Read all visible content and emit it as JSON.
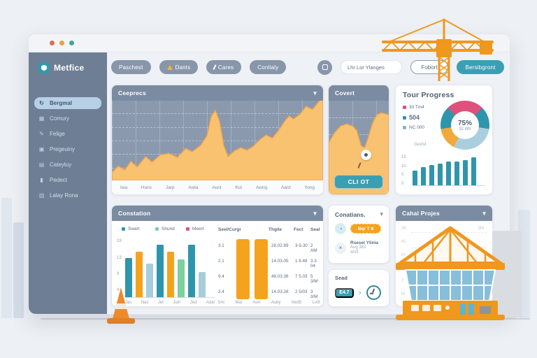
{
  "window": {
    "title_dots": [
      "#dd6b5a",
      "#e3a43e",
      "#3ea79b"
    ]
  },
  "brand": {
    "name": "Metfice"
  },
  "colors": {
    "accent_teal": "#2f9ab0",
    "accent_orange": "#f5a21f",
    "slate_header": "#7b8ba1",
    "pink": "#e0507c",
    "green": "#7fcf9f",
    "light_blue": "#a7cddd"
  },
  "sidebar": {
    "items": [
      {
        "label": "Bergmal",
        "icon": "refresh",
        "active": true
      },
      {
        "label": "Comury",
        "icon": "grid",
        "active": false
      },
      {
        "label": "Felige",
        "icon": "pencil",
        "active": false
      },
      {
        "label": "Pregeuiny",
        "icon": "calculator",
        "active": false
      },
      {
        "label": "Cateyluy",
        "icon": "calendar",
        "active": false
      },
      {
        "label": "Pedect",
        "icon": "phone",
        "active": false
      },
      {
        "label": "Lalay Rona",
        "icon": "document",
        "active": false
      }
    ]
  },
  "toolbar": {
    "buttons": [
      {
        "label": "Paschest",
        "icon": null
      },
      {
        "label": "Dants",
        "icon": "warning"
      },
      {
        "label": "Cares",
        "icon": "tool"
      },
      {
        "label": "Conlialy",
        "icon": null
      }
    ],
    "icon_button": "app",
    "search_value": "Lhr Lor Ylanges",
    "secondary_button": "Fobort",
    "primary_button": "Bersibgront"
  },
  "panels": {
    "overview": {
      "title": "Ceeprecs"
    },
    "covert": {
      "title": "Covert",
      "button": "CLI OT"
    },
    "progress": {
      "title": "Tour Progress",
      "legend": [
        {
          "label": "30 Tm4",
          "color": "#e0507c"
        },
        {
          "label": "504",
          "color": "#2f95ac"
        },
        {
          "label": "NC 000",
          "color": "#7fb4d9"
        }
      ],
      "legend_note": "Gesful"
    },
    "constation": {
      "title": "Constation",
      "legend": [
        {
          "label": "Swart",
          "color": "#2f95ac"
        },
        {
          "label": "Shund",
          "color": "#7fcf9f"
        },
        {
          "label": "Meert",
          "color": "#e0507c"
        }
      ]
    },
    "conatians": {
      "title": "Conatians.",
      "rows": [
        {
          "button": "Bqr T 8"
        },
        {
          "title": "Rsesel Ylinia",
          "sub1": "Aug 383",
          "sub2": "wrt3"
        }
      ]
    },
    "sead": {
      "title": "Sead",
      "button": "E4.7"
    },
    "cahal": {
      "title": "Cahal Projes",
      "axis_labels": [
        "2h",
        "41",
        "m",
        "9m",
        "7",
        "M"
      ],
      "top_right_label": "3M"
    }
  },
  "chart_data": [
    {
      "id": "overview_area",
      "type": "area",
      "x_labels": [
        "Iwa",
        "Huns",
        "Jarp",
        "Awta",
        "Aunt",
        "Kut",
        "Awng",
        "Aard",
        "Yong"
      ],
      "points": [
        [
          0,
          10
        ],
        [
          3,
          18
        ],
        [
          6,
          13
        ],
        [
          9,
          24
        ],
        [
          12,
          17
        ],
        [
          16,
          30
        ],
        [
          19,
          23
        ],
        [
          23,
          32
        ],
        [
          27,
          34
        ],
        [
          31,
          29
        ],
        [
          35,
          40
        ],
        [
          38,
          36
        ],
        [
          42,
          44
        ],
        [
          45,
          56
        ],
        [
          47,
          80
        ],
        [
          49,
          88
        ],
        [
          51,
          74
        ],
        [
          53,
          44
        ],
        [
          55,
          30
        ],
        [
          58,
          37
        ],
        [
          61,
          41
        ],
        [
          64,
          38
        ],
        [
          67,
          43
        ],
        [
          70,
          51
        ],
        [
          73,
          57
        ],
        [
          76,
          53
        ],
        [
          79,
          63
        ],
        [
          82,
          75
        ],
        [
          84,
          81
        ],
        [
          86,
          77
        ],
        [
          89,
          83
        ],
        [
          92,
          93
        ],
        [
          95,
          89
        ],
        [
          98,
          99
        ],
        [
          100,
          104
        ]
      ],
      "fill": "#f8c271",
      "stroke": "#eda24b",
      "bg": "#8a99ae"
    },
    {
      "id": "covert_area",
      "type": "area",
      "points": [
        [
          0,
          55
        ],
        [
          10,
          66
        ],
        [
          20,
          73
        ],
        [
          30,
          75
        ],
        [
          40,
          73
        ],
        [
          47,
          68
        ],
        [
          54,
          52
        ],
        [
          60,
          50
        ],
        [
          66,
          61
        ],
        [
          73,
          76
        ],
        [
          80,
          85
        ],
        [
          88,
          87
        ],
        [
          100,
          85
        ]
      ],
      "fill": "#f8c271",
      "stroke": "#eda24b",
      "bg": "#8a99ae"
    },
    {
      "id": "progress_donut",
      "type": "pie",
      "start_deg": 315,
      "segments": [
        {
          "label": "30 Tm4",
          "value": 25,
          "color": "#e0507c"
        },
        {
          "label": "504",
          "value": 15,
          "color": "#2f95ac"
        },
        {
          "label": "NC 000",
          "value": 30,
          "color": "#a9cfdf"
        },
        {
          "label": "",
          "value": 15,
          "color": "#f2a93b"
        },
        {
          "label": "",
          "value": 15,
          "color": "#2f95ac"
        }
      ],
      "center": "75%",
      "center_sub": "32 Wh"
    },
    {
      "id": "progress_bars",
      "type": "bar",
      "values": [
        38,
        48,
        54,
        57,
        62,
        64,
        66,
        75
      ],
      "max": 80,
      "color": "#2f95ac",
      "y_labels": [
        "15",
        "10",
        "5",
        "0"
      ]
    },
    {
      "id": "constation_bars",
      "type": "bar",
      "values": [
        13.5,
        15.5,
        11.5,
        18,
        15.5,
        13,
        18,
        8.5
      ],
      "max": 19,
      "colors": [
        "#2f95ac",
        "#f5a21f",
        "#a7cddd",
        "#2f95ac",
        "#f5a21f",
        "#7fcf9f",
        "#2f95ac",
        "#a7cddd"
      ],
      "y_labels": [
        "19",
        "13",
        "9",
        "4"
      ],
      "x_labels": [
        "Jas",
        "Nas",
        "Jet",
        "Juin",
        "Jed",
        "Adal"
      ]
    },
    {
      "id": "constation_table",
      "type": "table",
      "headers": [
        "Seel/Curgr",
        "Thgile",
        "Fect",
        "Seal"
      ],
      "rows": [
        [
          "3.1",
          "28.02.89",
          "3-5.30",
          "2 AM"
        ],
        [
          "2.1",
          "14.03.05",
          "1 8.48",
          "3.3 04"
        ],
        [
          "9.4",
          "48.03.38",
          "7 5.03",
          "5 3/M"
        ],
        [
          "3.4",
          "14.03.28",
          "2 5/03",
          "3 3/M"
        ]
      ],
      "footer": [
        "5At",
        "Mai",
        "Aort",
        "Auby",
        "Ned5",
        "Lv0t"
      ],
      "bar_color": "#f5a21f"
    }
  ]
}
